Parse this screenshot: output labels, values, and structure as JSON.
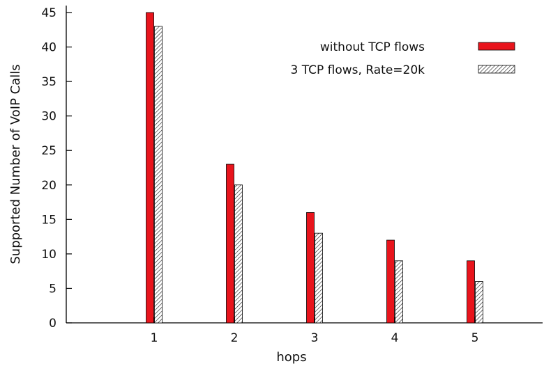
{
  "chart_data": {
    "type": "bar",
    "categories": [
      "1",
      "2",
      "3",
      "4",
      "5"
    ],
    "series": [
      {
        "name": "without TCP flows",
        "values": [
          45,
          23,
          16,
          12,
          9
        ],
        "color": "#e8141c",
        "pattern": "solid"
      },
      {
        "name": "3 TCP flows, Rate=20k",
        "values": [
          43,
          20,
          13,
          9,
          6
        ],
        "color": "#ffffff",
        "pattern": "diagonal-hatch"
      }
    ],
    "xlabel": "hops",
    "ylabel": "Supported Number of VoIP Calls",
    "ylim": [
      0,
      45
    ],
    "yticks": [
      0,
      5,
      10,
      15,
      20,
      25,
      30,
      35,
      40,
      45
    ],
    "grid": false,
    "legend_position": "top-right"
  }
}
